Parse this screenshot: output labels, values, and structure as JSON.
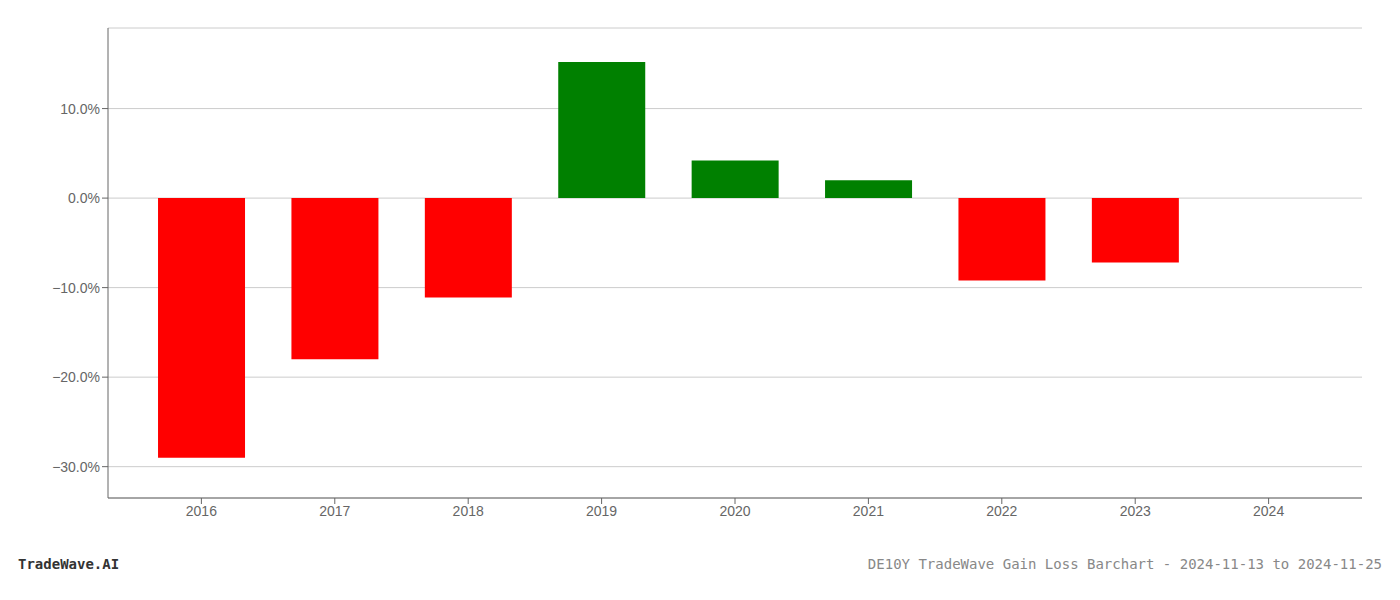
{
  "chart_data": {
    "type": "bar",
    "x": [
      2016,
      2017,
      2018,
      2019,
      2020,
      2021,
      2022,
      2023
    ],
    "values": [
      -0.29,
      -0.18,
      -0.111,
      0.152,
      0.042,
      0.02,
      -0.092,
      -0.072
    ],
    "colors": [
      "#ff0000",
      "#ff0000",
      "#ff0000",
      "#008000",
      "#008000",
      "#008000",
      "#ff0000",
      "#ff0000"
    ],
    "xlim": [
      2015.3,
      2024.7
    ],
    "xticks": [
      2016,
      2017,
      2018,
      2019,
      2020,
      2021,
      2022,
      2023,
      2024
    ],
    "ylim": [
      -0.335,
      0.19
    ],
    "yticks": [
      {
        "value": 0.1,
        "label": "10.0%"
      },
      {
        "value": 0.0,
        "label": "0.0%"
      },
      {
        "value": -0.1,
        "label": "−10.0%"
      },
      {
        "value": -0.2,
        "label": "−20.0%"
      },
      {
        "value": -0.3,
        "label": "−30.0%"
      }
    ],
    "grid": true,
    "annotations": [
      "TradeWave.AI",
      "DE10Y TradeWave Gain Loss Barchart - 2024-11-13 to 2024-11-25"
    ]
  }
}
